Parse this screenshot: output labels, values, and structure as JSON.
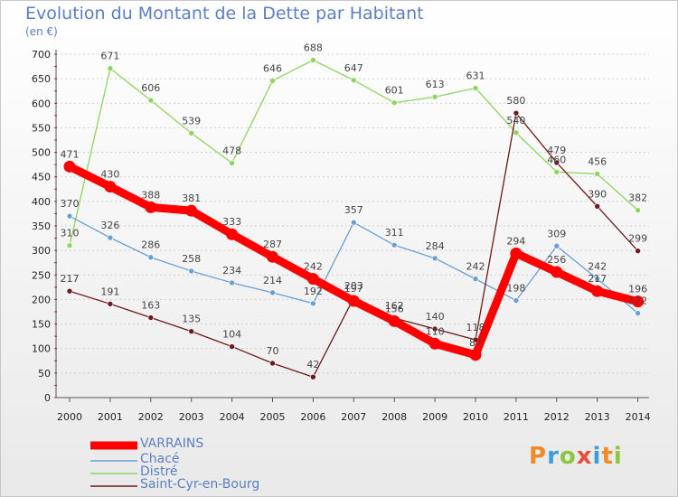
{
  "chart_data": {
    "type": "line",
    "title": "Evolution du Montant de la Dette par Habitant",
    "unit_label": "(en €)",
    "x": [
      "2000",
      "2001",
      "2002",
      "2003",
      "2004",
      "2005",
      "2006",
      "2007",
      "2008",
      "2009",
      "2010",
      "2011",
      "2012",
      "2013",
      "2014"
    ],
    "ylim": [
      0,
      700
    ],
    "yticks": [
      0,
      50,
      100,
      150,
      200,
      250,
      300,
      350,
      400,
      450,
      500,
      550,
      600,
      650,
      700
    ],
    "grid": "horizontal-dashed",
    "legend_position": "bottom-left",
    "series": [
      {
        "name": "VARRAINS",
        "color": "#ff0000",
        "values": [
          471,
          430,
          388,
          381,
          333,
          287,
          242,
          197,
          156,
          110,
          87,
          294,
          256,
          217,
          196
        ]
      },
      {
        "name": "Chacé",
        "color": "#6a9fd4",
        "values": [
          370,
          326,
          286,
          258,
          234,
          214,
          192,
          357,
          311,
          284,
          242,
          198,
          309,
          242,
          172
        ]
      },
      {
        "name": "Distré",
        "color": "#8fd45e",
        "values": [
          310,
          671,
          606,
          539,
          478,
          646,
          688,
          647,
          601,
          613,
          631,
          540,
          460,
          456,
          382
        ]
      },
      {
        "name": "Saint-Cyr-en-Bourg",
        "color": "#6b1a1a",
        "values": [
          217,
          191,
          163,
          135,
          104,
          70,
          42,
          203,
          162,
          140,
          118,
          580,
          479,
          390,
          299
        ]
      }
    ],
    "value_labels": [
      {
        "series": "VARRAINS",
        "labels": [
          "471",
          "430",
          "388",
          "381",
          "333",
          "287",
          "242",
          "197",
          "156",
          "110",
          "87",
          "294",
          "256",
          "217",
          "196"
        ]
      },
      {
        "series": "Chacé",
        "labels": [
          "370",
          "326",
          "286",
          "258",
          "234",
          "214",
          "192",
          "357",
          "311",
          "284",
          "242",
          "198",
          "309",
          "242",
          "172"
        ]
      },
      {
        "series": "Distré",
        "labels": [
          "310",
          "671",
          "606",
          "539",
          "478",
          "646",
          "688",
          "647",
          "601",
          "613",
          "631",
          "540",
          "460",
          "456",
          "382"
        ]
      },
      {
        "series": "Saint-Cyr-en-Bourg",
        "labels": [
          "217",
          "191",
          "163",
          "135",
          "104",
          "70",
          "42",
          "203",
          "162",
          "140",
          "118",
          "580",
          "479",
          "390",
          "299"
        ]
      }
    ]
  },
  "branding": {
    "logo_text": "Proxiti"
  }
}
